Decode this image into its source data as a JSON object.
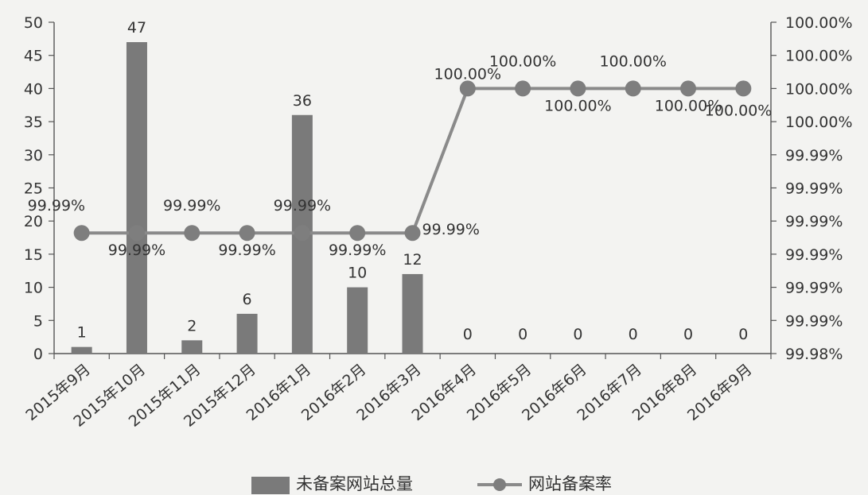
{
  "chart_data": {
    "type": "bar+line",
    "categories": [
      "2015年9月",
      "2015年10月",
      "2015年11月",
      "2015年12月",
      "2016年1月",
      "2016年2月",
      "2016年3月",
      "2016年4月",
      "2016年5月",
      "2016年6月",
      "2016年7月",
      "2016年8月",
      "2016年9月"
    ],
    "series": [
      {
        "name": "未备案网站总量",
        "type": "bar",
        "axis": "left",
        "values": [
          1,
          47,
          2,
          6,
          36,
          10,
          12,
          0,
          0,
          0,
          0,
          0,
          0
        ],
        "labels": [
          "1",
          "47",
          "2",
          "6",
          "36",
          "10",
          "12",
          "0",
          "0",
          "0",
          "0",
          "0",
          "0"
        ],
        "color": "#7a7a7a"
      },
      {
        "name": "网站备案率",
        "type": "line",
        "axis": "right",
        "values": [
          99.9891,
          99.9891,
          99.9891,
          99.9891,
          99.9891,
          99.9891,
          99.9891,
          100.0,
          100.0,
          100.0,
          100.0,
          100.0,
          100.0
        ],
        "labels": [
          "99.99%",
          "99.99%",
          "99.99%",
          "99.99%",
          "99.99%",
          "99.99%",
          "99.99%",
          "100.00%",
          "100.00%",
          "100.00%",
          "100.00%",
          "100.00%",
          "100.00%"
        ],
        "color": "#8a8a8a"
      }
    ],
    "y_left": {
      "ylim": [
        0,
        50
      ],
      "ticks": [
        "0",
        "5",
        "10",
        "15",
        "20",
        "25",
        "30",
        "35",
        "40",
        "45",
        "50"
      ]
    },
    "y_right": {
      "ylim": [
        99.98,
        100.005
      ],
      "ticks": [
        "99.98%",
        "99.99%",
        "99.99%",
        "99.99%",
        "99.99%",
        "99.99%",
        "99.99%",
        "100.00%",
        "100.00%",
        "100.00%",
        "100.00%"
      ]
    },
    "legend_position": "bottom",
    "grid": false
  }
}
